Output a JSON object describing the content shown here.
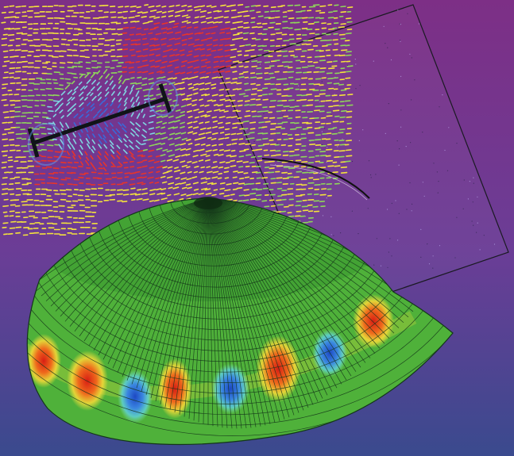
{
  "scene": {
    "palette": {
      "bg_top": "#7d2f86",
      "bg_mid": "#6b3d96",
      "bg_bottom": "#3a4a8e",
      "surface_base": "#4fb13a",
      "mesh_line": "#14361a",
      "mode_red": "#e02a1a",
      "mode_orange": "#f08a1e",
      "mode_yellow": "#f2e23a",
      "mode_blue": "#2a5fd0",
      "vector_red": "#e8342a",
      "vector_yellow": "#f4e23c",
      "vector_green": "#8fd65a",
      "vector_cyan": "#7fd6e0",
      "vector_blue": "#3a6ad8",
      "beam": "#101418",
      "plane_edge": "#1a1a22"
    },
    "mode_lobes": [
      {
        "kind": "red"
      },
      {
        "kind": "red"
      },
      {
        "kind": "blue"
      },
      {
        "kind": "red"
      },
      {
        "kind": "blue"
      },
      {
        "kind": "red"
      },
      {
        "kind": "blue"
      },
      {
        "kind": "red"
      }
    ]
  }
}
